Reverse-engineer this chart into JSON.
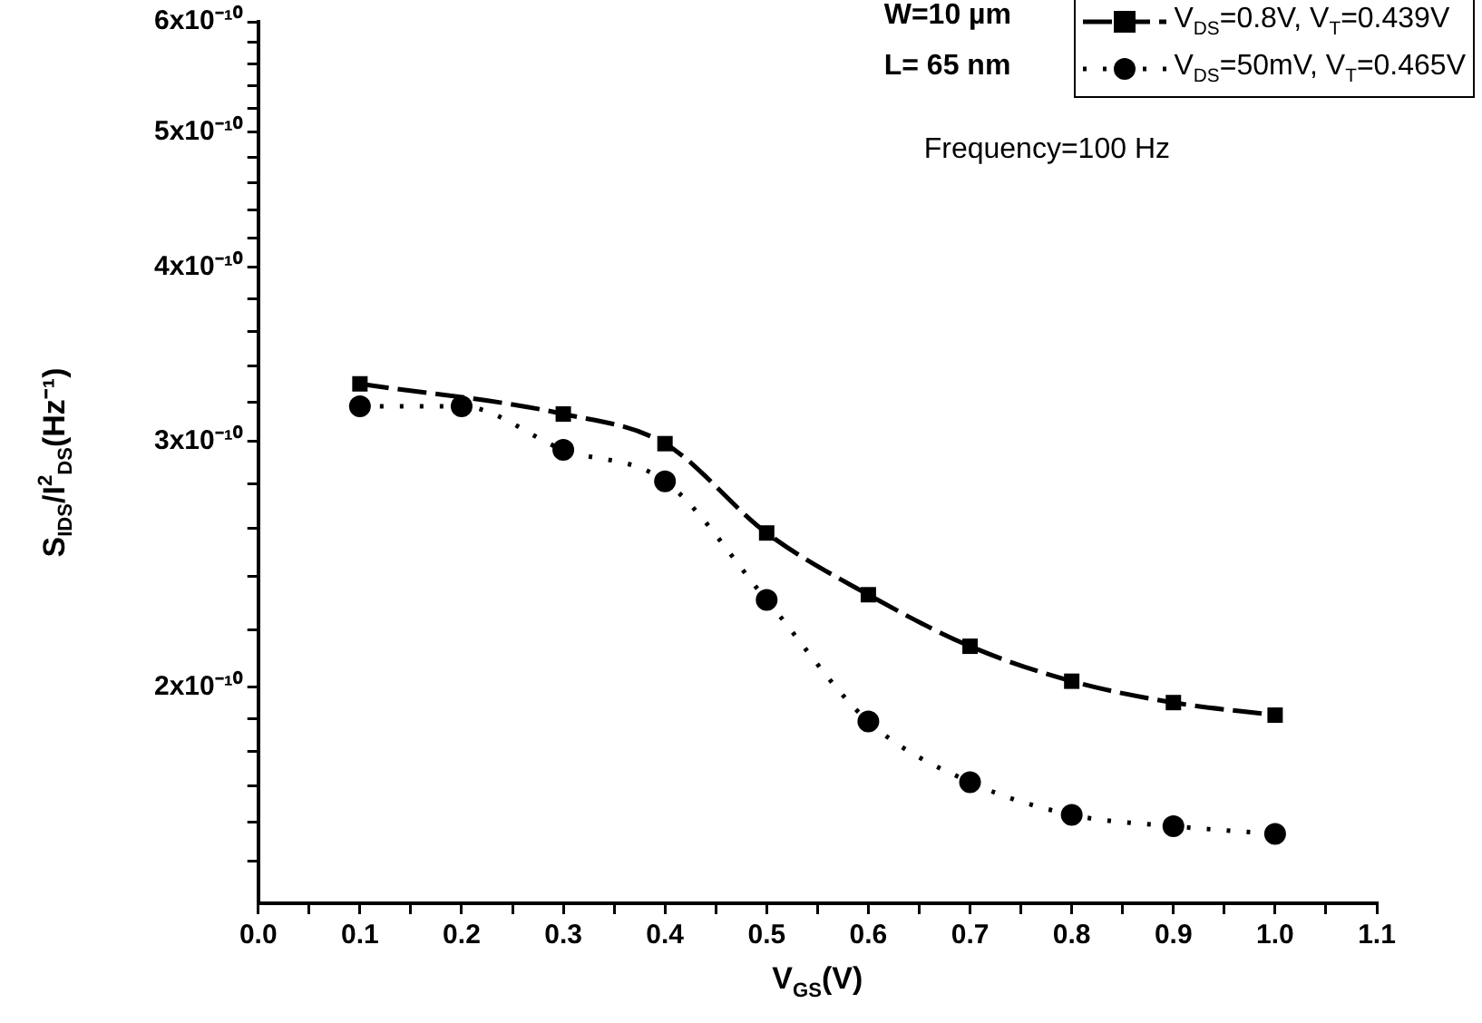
{
  "chart_data": {
    "type": "line",
    "xlabel": "V$_{GS}$(V)",
    "ylabel": "S$_{IDS}$/I$^{2}$$_{DS}$(Hz⁻¹)",
    "annotations": [
      "W=10 µm",
      "L= 65 nm",
      "Frequency=100 Hz"
    ],
    "x": [
      0.1,
      0.2,
      0.3,
      0.4,
      0.5,
      0.6,
      0.7,
      0.8,
      0.9,
      1.0
    ],
    "series": [
      {
        "name": "V$_{DS}$=0.8V, V$_{T}$=0.439V",
        "color": "#000000",
        "marker": "square",
        "line_style": "dashed",
        "values": [
          3.3e-10,
          null,
          3.14e-10,
          2.99e-10,
          2.58e-10,
          2.33e-10,
          2.14e-10,
          2.02e-10,
          1.95e-10,
          1.91e-10
        ]
      },
      {
        "name": "V$_{DS}$=50mV, V$_{T}$=0.465V",
        "color": "#000000",
        "marker": "circle",
        "line_style": "dotted",
        "values": [
          3.18e-10,
          3.18e-10,
          2.96e-10,
          2.81e-10,
          2.31e-10,
          1.89e-10,
          1.71e-10,
          1.62e-10,
          1.59e-10,
          1.57e-10
        ]
      }
    ],
    "log": "y",
    "grid": false,
    "legend": "top right",
    "xlim": [
      0,
      1.1
    ],
    "xticks": [
      {
        "value": 0,
        "label": "0.0"
      },
      {
        "value": 0.05,
        "label": null
      },
      {
        "value": 0.1,
        "label": "0.1"
      },
      {
        "value": 0.15,
        "label": null
      },
      {
        "value": 0.2,
        "label": "0.2"
      },
      {
        "value": 0.25,
        "label": null
      },
      {
        "value": 0.3,
        "label": "0.3"
      },
      {
        "value": 0.35,
        "label": null
      },
      {
        "value": 0.4,
        "label": "0.4"
      },
      {
        "value": 0.45,
        "label": null
      },
      {
        "value": 0.5,
        "label": "0.5"
      },
      {
        "value": 0.55,
        "label": null
      },
      {
        "value": 0.6,
        "label": "0.6"
      },
      {
        "value": 0.65,
        "label": null
      },
      {
        "value": 0.7,
        "label": "0.7"
      },
      {
        "value": 0.75,
        "label": null
      },
      {
        "value": 0.8,
        "label": "0.8"
      },
      {
        "value": 0.85,
        "label": null
      },
      {
        "value": 0.9,
        "label": "0.9"
      },
      {
        "value": 0.95,
        "label": null
      },
      {
        "value": 1.0,
        "label": "1.0"
      },
      {
        "value": 1.05,
        "label": null
      },
      {
        "value": 1.1,
        "label": "1.1"
      }
    ],
    "ylim": [
      1.4e-10,
      6e-10
    ],
    "yticks": [
      {
        "value": 1.5e-10,
        "label": null
      },
      {
        "value": 1.6e-10,
        "label": null
      },
      {
        "value": 1.7e-10,
        "label": null
      },
      {
        "value": 1.8e-10,
        "label": null
      },
      {
        "value": 1.9e-10,
        "label": null
      },
      {
        "value": 2e-10,
        "label": "2x10⁻¹⁰"
      },
      {
        "value": 2.2e-10,
        "label": null
      },
      {
        "value": 2.4e-10,
        "label": null
      },
      {
        "value": 2.6e-10,
        "label": null
      },
      {
        "value": 2.8e-10,
        "label": null
      },
      {
        "value": 3e-10,
        "label": "3x10⁻¹⁰"
      },
      {
        "value": 3.2e-10,
        "label": null
      },
      {
        "value": 3.4e-10,
        "label": null
      },
      {
        "value": 3.6e-10,
        "label": null
      },
      {
        "value": 3.8e-10,
        "label": null
      },
      {
        "value": 4e-10,
        "label": "4x10⁻¹⁰"
      },
      {
        "value": 4.2e-10,
        "label": null
      },
      {
        "value": 4.4e-10,
        "label": null
      },
      {
        "value": 4.6e-10,
        "label": null
      },
      {
        "value": 4.8e-10,
        "label": null
      },
      {
        "value": 5e-10,
        "label": "5x10⁻¹⁰"
      },
      {
        "value": 5.2e-10,
        "label": null
      },
      {
        "value": 5.4e-10,
        "label": null
      },
      {
        "value": 5.6e-10,
        "label": null
      },
      {
        "value": 5.8e-10,
        "label": null
      },
      {
        "value": 6e-10,
        "label": "6x10⁻¹⁰"
      }
    ]
  }
}
